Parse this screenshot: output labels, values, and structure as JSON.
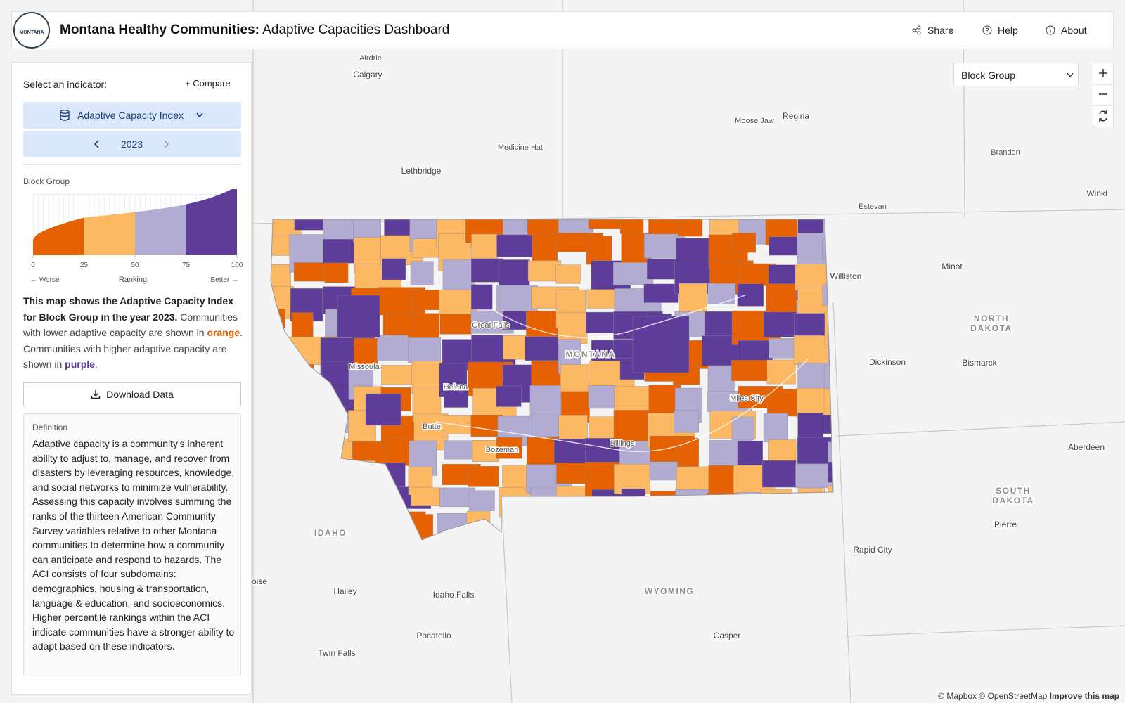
{
  "header": {
    "title_bold": "Montana Healthy Communities:",
    "title": "Adaptive Capacities Dashboard",
    "logo": "MONTANA",
    "nav": [
      "Share",
      "Help",
      "About"
    ]
  },
  "sidebar": {
    "select_label": "Select an indicator:",
    "compare": "Compare",
    "indicator": "Adaptive Capacity Index",
    "year": "2023",
    "legend": {
      "title": "Block Group",
      "ticks": [
        0,
        25,
        50,
        75,
        100
      ],
      "axis_label": "Ranking",
      "left": "← Worse",
      "right": "Better →",
      "colors": [
        "#e66101",
        "#fdb863",
        "#b2abd2",
        "#5e3c99"
      ]
    },
    "description": {
      "bold": "This map shows the Adaptive Capacity Index for Block Group in the year 2023.",
      "text1": " Communities with lower adaptive capacity are shown in ",
      "orange": "orange",
      "text2": ". Communities with higher adaptive capacity are shown in ",
      "purple": "purple",
      "text3": "."
    },
    "download": "Download Data",
    "definition": {
      "title": "Definition",
      "text": "Adaptive capacity is a community's inherent ability to adjust to, manage, and recover from disasters by leveraging resources, knowledge, and social networks to minimize vulnerability. Assessing this capacity involves summing the ranks of the thirteen American Community Survey variables relative to other Montana communities to determine how a community can anticipate and respond to hazards. The ACI consists of four subdomains: demographics, housing & transportation, language & education, and socioeconomics. Higher percentile rankings within the ACI indicate communities have a stronger ability to adapt based on these indicators."
    }
  },
  "map": {
    "geography": "Block Group",
    "labels": [
      "Airdrie",
      "Calgary",
      "Moose Jaw",
      "Regina",
      "Medicine Hat",
      "Brandon",
      "Lethbridge",
      "Estevan",
      "Winkl",
      "Williston",
      "Minot",
      "NORTH DAKOTA",
      "Great Falls",
      "MONTANA",
      "Dickinson",
      "Bismarck",
      "Missoula",
      "Helena",
      "Miles City",
      "Butte",
      "Billings",
      "Bozeman",
      "Aberdeen",
      "SOUTH DAKOTA",
      "Pierre",
      "IDAHO",
      "Rapid City",
      "oise",
      "WYOMING",
      "Hailey",
      "Idaho Falls",
      "Pocatello",
      "Casper",
      "Twin Falls"
    ],
    "attribution": "© Mapbox © OpenStreetMap",
    "improve": "Improve this map"
  }
}
